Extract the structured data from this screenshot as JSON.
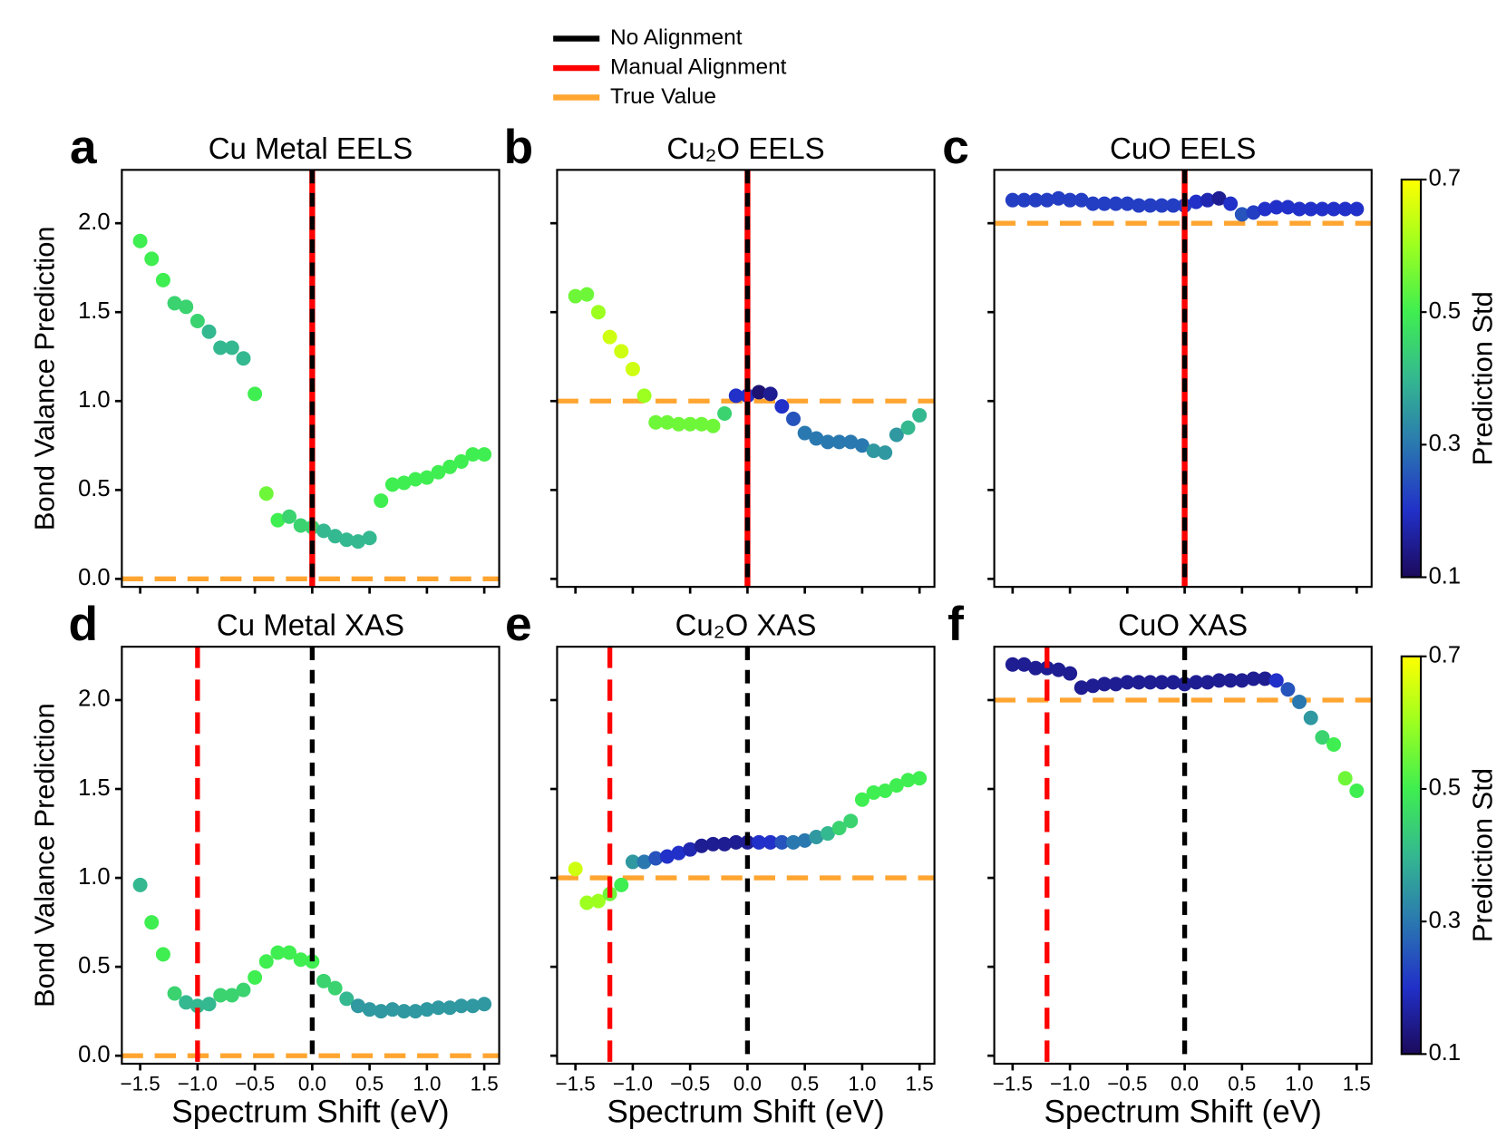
{
  "legend": [
    {
      "name": "No Alignment",
      "color": "#000000"
    },
    {
      "name": "Manual Alignment",
      "color": "#ff0000"
    },
    {
      "name": "True Value",
      "color": "#ffa530"
    }
  ],
  "colormap": [
    "#1c0a5c",
    "#2130c8",
    "#2a78b0",
    "#34b890",
    "#3fee50",
    "#9cff20",
    "#ffff00"
  ],
  "chart_data": [
    {
      "type": "scatter",
      "panel": "a",
      "title": "Cu Metal EELS",
      "ylabel": "Bond Valance Prediction",
      "x": [
        -1.5,
        -1.4,
        -1.3,
        -1.2,
        -1.1,
        -1.0,
        -0.9,
        -0.8,
        -0.7,
        -0.6,
        -0.5,
        -0.4,
        -0.3,
        -0.2,
        -0.1,
        0.0,
        0.1,
        0.2,
        0.3,
        0.4,
        0.5,
        0.6,
        0.7,
        0.8,
        0.9,
        1.0,
        1.1,
        1.2,
        1.3,
        1.4,
        1.5
      ],
      "values": [
        1.9,
        1.8,
        1.68,
        1.55,
        1.53,
        1.45,
        1.39,
        1.3,
        1.3,
        1.24,
        1.04,
        0.48,
        0.33,
        0.35,
        0.3,
        0.29,
        0.27,
        0.24,
        0.22,
        0.21,
        0.23,
        0.44,
        0.53,
        0.54,
        0.56,
        0.57,
        0.6,
        0.63,
        0.66,
        0.7,
        0.7
      ],
      "std": [
        0.5,
        0.5,
        0.5,
        0.45,
        0.45,
        0.45,
        0.4,
        0.4,
        0.4,
        0.4,
        0.5,
        0.55,
        0.5,
        0.45,
        0.45,
        0.45,
        0.4,
        0.4,
        0.4,
        0.4,
        0.4,
        0.5,
        0.5,
        0.5,
        0.5,
        0.5,
        0.5,
        0.5,
        0.5,
        0.5,
        0.5
      ],
      "xlim": [
        -1.66,
        1.63
      ],
      "ylim": [
        -0.045,
        2.3
      ],
      "clim": [
        0.1,
        0.7
      ],
      "xticks": [
        -1.5,
        -1,
        -0.5,
        0,
        0.5,
        1,
        1.5
      ],
      "yticks": [
        {
          "value": 0,
          "label": "0.0"
        },
        0.5,
        {
          "value": 1,
          "label": "1.0"
        },
        1.5,
        {
          "value": 2,
          "label": "2.0"
        }
      ],
      "no_alignment": 0,
      "manual_alignment": 0,
      "manual_dashed": false,
      "true_value": 0
    },
    {
      "type": "scatter",
      "panel": "b",
      "title": "Cu₂O EELS",
      "x": [
        -1.5,
        -1.4,
        -1.3,
        -1.2,
        -1.1,
        -1.0,
        -0.9,
        -0.8,
        -0.7,
        -0.6,
        -0.5,
        -0.4,
        -0.3,
        -0.2,
        -0.1,
        0.0,
        0.1,
        0.2,
        0.3,
        0.4,
        0.5,
        0.6,
        0.7,
        0.8,
        0.9,
        1.0,
        1.1,
        1.2,
        1.3,
        1.4,
        1.5
      ],
      "values": [
        1.59,
        1.6,
        1.5,
        1.36,
        1.28,
        1.18,
        1.03,
        0.88,
        0.88,
        0.87,
        0.87,
        0.87,
        0.86,
        0.93,
        1.03,
        1.03,
        1.05,
        1.04,
        0.97,
        0.9,
        0.82,
        0.79,
        0.77,
        0.77,
        0.77,
        0.75,
        0.72,
        0.71,
        0.81,
        0.85,
        0.92
      ],
      "std": [
        0.55,
        0.55,
        0.6,
        0.65,
        0.65,
        0.65,
        0.6,
        0.55,
        0.55,
        0.55,
        0.55,
        0.55,
        0.55,
        0.45,
        0.2,
        0.2,
        0.12,
        0.15,
        0.2,
        0.25,
        0.3,
        0.3,
        0.3,
        0.3,
        0.3,
        0.3,
        0.35,
        0.35,
        0.35,
        0.4,
        0.4
      ],
      "xlim": [
        -1.66,
        1.63
      ],
      "ylim": [
        -0.045,
        2.3
      ],
      "clim": [
        0.1,
        0.7
      ],
      "xticks": [
        -1.5,
        -1,
        -0.5,
        0,
        0.5,
        1,
        1.5
      ],
      "yticks": [
        0,
        0.5,
        1,
        1.5,
        2
      ],
      "no_alignment": 0,
      "manual_alignment": 0,
      "manual_dashed": false,
      "true_value": 1
    },
    {
      "type": "scatter",
      "panel": "c",
      "title": "CuO EELS",
      "x": [
        -1.5,
        -1.4,
        -1.3,
        -1.2,
        -1.1,
        -1.0,
        -0.9,
        -0.8,
        -0.7,
        -0.6,
        -0.5,
        -0.4,
        -0.3,
        -0.2,
        -0.1,
        0.0,
        0.1,
        0.2,
        0.3,
        0.4,
        0.5,
        0.6,
        0.7,
        0.8,
        0.9,
        1.0,
        1.1,
        1.2,
        1.3,
        1.4,
        1.5
      ],
      "values": [
        2.13,
        2.13,
        2.13,
        2.13,
        2.14,
        2.13,
        2.13,
        2.11,
        2.11,
        2.11,
        2.11,
        2.1,
        2.1,
        2.1,
        2.1,
        2.1,
        2.12,
        2.13,
        2.14,
        2.11,
        2.05,
        2.06,
        2.08,
        2.09,
        2.09,
        2.08,
        2.08,
        2.08,
        2.08,
        2.08,
        2.08
      ],
      "std": [
        0.22,
        0.22,
        0.22,
        0.22,
        0.22,
        0.22,
        0.22,
        0.22,
        0.22,
        0.22,
        0.22,
        0.22,
        0.22,
        0.22,
        0.22,
        0.22,
        0.2,
        0.18,
        0.15,
        0.2,
        0.25,
        0.22,
        0.2,
        0.2,
        0.2,
        0.2,
        0.2,
        0.2,
        0.2,
        0.2,
        0.2
      ],
      "xlim": [
        -1.66,
        1.63
      ],
      "ylim": [
        -0.045,
        2.3
      ],
      "clim": [
        0.1,
        0.7
      ],
      "xticks": [
        -1.5,
        -1,
        -0.5,
        0,
        0.5,
        1,
        1.5
      ],
      "yticks": [
        0,
        0.5,
        1,
        1.5,
        2
      ],
      "no_alignment": 0,
      "manual_alignment": 0,
      "manual_dashed": false,
      "true_value": 2,
      "colorbar": {
        "label": "Prediction Std",
        "ticks": [
          0.1,
          0.3,
          0.5,
          0.7
        ]
      }
    },
    {
      "type": "scatter",
      "panel": "d",
      "title": "Cu Metal XAS",
      "ylabel": "Bond Valance Prediction",
      "xlabel": "Spectrum Shift (eV)",
      "x": [
        -1.5,
        -1.4,
        -1.3,
        -1.2,
        -1.1,
        -1.0,
        -0.9,
        -0.8,
        -0.7,
        -0.6,
        -0.5,
        -0.4,
        -0.3,
        -0.2,
        -0.1,
        0.0,
        0.1,
        0.2,
        0.3,
        0.4,
        0.5,
        0.6,
        0.7,
        0.8,
        0.9,
        1.0,
        1.1,
        1.2,
        1.3,
        1.4,
        1.5
      ],
      "values": [
        0.96,
        0.75,
        0.57,
        0.35,
        0.3,
        0.28,
        0.29,
        0.34,
        0.34,
        0.37,
        0.44,
        0.53,
        0.58,
        0.58,
        0.54,
        0.53,
        0.42,
        0.38,
        0.32,
        0.28,
        0.26,
        0.25,
        0.26,
        0.25,
        0.25,
        0.26,
        0.27,
        0.27,
        0.28,
        0.28,
        0.29
      ],
      "std": [
        0.4,
        0.5,
        0.5,
        0.45,
        0.4,
        0.4,
        0.4,
        0.45,
        0.45,
        0.45,
        0.5,
        0.5,
        0.5,
        0.5,
        0.5,
        0.5,
        0.45,
        0.45,
        0.4,
        0.35,
        0.35,
        0.35,
        0.35,
        0.35,
        0.35,
        0.35,
        0.35,
        0.35,
        0.35,
        0.35,
        0.35
      ],
      "xlim": [
        -1.66,
        1.63
      ],
      "ylim": [
        -0.045,
        2.3
      ],
      "clim": [
        0.1,
        0.7
      ],
      "xticks": [
        {
          "value": -1.5,
          "label": "−1.5"
        },
        {
          "value": -1,
          "label": "−1.0"
        },
        {
          "value": -0.5,
          "label": "−0.5"
        },
        {
          "value": 0,
          "label": "0.0"
        },
        0.5,
        {
          "value": 1,
          "label": "1.0"
        },
        1.5
      ],
      "yticks": [
        {
          "value": 0,
          "label": "0.0"
        },
        0.5,
        {
          "value": 1,
          "label": "1.0"
        },
        1.5,
        {
          "value": 2,
          "label": "2.0"
        }
      ],
      "no_alignment": 0,
      "manual_alignment": -1.0,
      "manual_dashed": true,
      "true_value": 0
    },
    {
      "type": "scatter",
      "panel": "e",
      "title": "Cu₂O XAS",
      "xlabel": "Spectrum Shift (eV)",
      "x": [
        -1.5,
        -1.4,
        -1.3,
        -1.2,
        -1.1,
        -1.0,
        -0.9,
        -0.8,
        -0.7,
        -0.6,
        -0.5,
        -0.4,
        -0.3,
        -0.2,
        -0.1,
        0.0,
        0.1,
        0.2,
        0.3,
        0.4,
        0.5,
        0.6,
        0.7,
        0.8,
        0.9,
        1.0,
        1.1,
        1.2,
        1.3,
        1.4,
        1.5
      ],
      "values": [
        1.05,
        0.86,
        0.87,
        0.91,
        0.96,
        1.09,
        1.09,
        1.11,
        1.12,
        1.14,
        1.16,
        1.18,
        1.19,
        1.19,
        1.2,
        1.2,
        1.2,
        1.2,
        1.2,
        1.2,
        1.21,
        1.23,
        1.25,
        1.28,
        1.32,
        1.44,
        1.48,
        1.49,
        1.52,
        1.55,
        1.56
      ],
      "std": [
        0.65,
        0.6,
        0.6,
        0.55,
        0.5,
        0.35,
        0.3,
        0.25,
        0.2,
        0.2,
        0.18,
        0.15,
        0.15,
        0.15,
        0.15,
        0.15,
        0.2,
        0.2,
        0.25,
        0.3,
        0.3,
        0.35,
        0.4,
        0.45,
        0.45,
        0.5,
        0.5,
        0.5,
        0.5,
        0.5,
        0.5
      ],
      "xlim": [
        -1.66,
        1.63
      ],
      "ylim": [
        -0.045,
        2.3
      ],
      "clim": [
        0.1,
        0.7
      ],
      "xticks": [
        {
          "value": -1.5,
          "label": "−1.5"
        },
        {
          "value": -1,
          "label": "−1.0"
        },
        {
          "value": -0.5,
          "label": "−0.5"
        },
        {
          "value": 0,
          "label": "0.0"
        },
        0.5,
        {
          "value": 1,
          "label": "1.0"
        },
        1.5
      ],
      "yticks": [
        0,
        0.5,
        1,
        1.5,
        2
      ],
      "no_alignment": 0,
      "manual_alignment": -1.2,
      "manual_dashed": true,
      "true_value": 1
    },
    {
      "type": "scatter",
      "panel": "f",
      "title": "CuO XAS",
      "xlabel": "Spectrum Shift (eV)",
      "x": [
        -1.5,
        -1.4,
        -1.3,
        -1.2,
        -1.1,
        -1.0,
        -0.9,
        -0.8,
        -0.7,
        -0.6,
        -0.5,
        -0.4,
        -0.3,
        -0.2,
        -0.1,
        0.0,
        0.1,
        0.2,
        0.3,
        0.4,
        0.5,
        0.6,
        0.7,
        0.8,
        0.9,
        1.0,
        1.1,
        1.2,
        1.3,
        1.4,
        1.5
      ],
      "values": [
        2.2,
        2.2,
        2.18,
        2.18,
        2.17,
        2.15,
        2.07,
        2.08,
        2.09,
        2.09,
        2.1,
        2.1,
        2.1,
        2.1,
        2.1,
        2.09,
        2.1,
        2.1,
        2.11,
        2.11,
        2.11,
        2.12,
        2.12,
        2.11,
        2.06,
        1.99,
        1.9,
        1.79,
        1.75,
        1.56,
        1.49
      ],
      "std": [
        0.15,
        0.15,
        0.15,
        0.15,
        0.15,
        0.15,
        0.15,
        0.15,
        0.15,
        0.15,
        0.15,
        0.15,
        0.15,
        0.15,
        0.15,
        0.15,
        0.15,
        0.15,
        0.15,
        0.15,
        0.15,
        0.15,
        0.15,
        0.2,
        0.25,
        0.3,
        0.35,
        0.45,
        0.5,
        0.55,
        0.5
      ],
      "xlim": [
        -1.66,
        1.63
      ],
      "ylim": [
        -0.045,
        2.3
      ],
      "clim": [
        0.1,
        0.7
      ],
      "xticks": [
        {
          "value": -1.5,
          "label": "−1.5"
        },
        {
          "value": -1,
          "label": "−1.0"
        },
        {
          "value": -0.5,
          "label": "−0.5"
        },
        {
          "value": 0,
          "label": "0.0"
        },
        0.5,
        {
          "value": 1,
          "label": "1.0"
        },
        1.5
      ],
      "yticks": [
        0,
        0.5,
        1,
        1.5,
        2
      ],
      "no_alignment": 0,
      "manual_alignment": -1.2,
      "manual_dashed": true,
      "true_value": 2,
      "colorbar": {
        "label": "Prediction Std",
        "ticks": [
          0.1,
          0.3,
          0.5,
          0.7
        ]
      }
    }
  ]
}
